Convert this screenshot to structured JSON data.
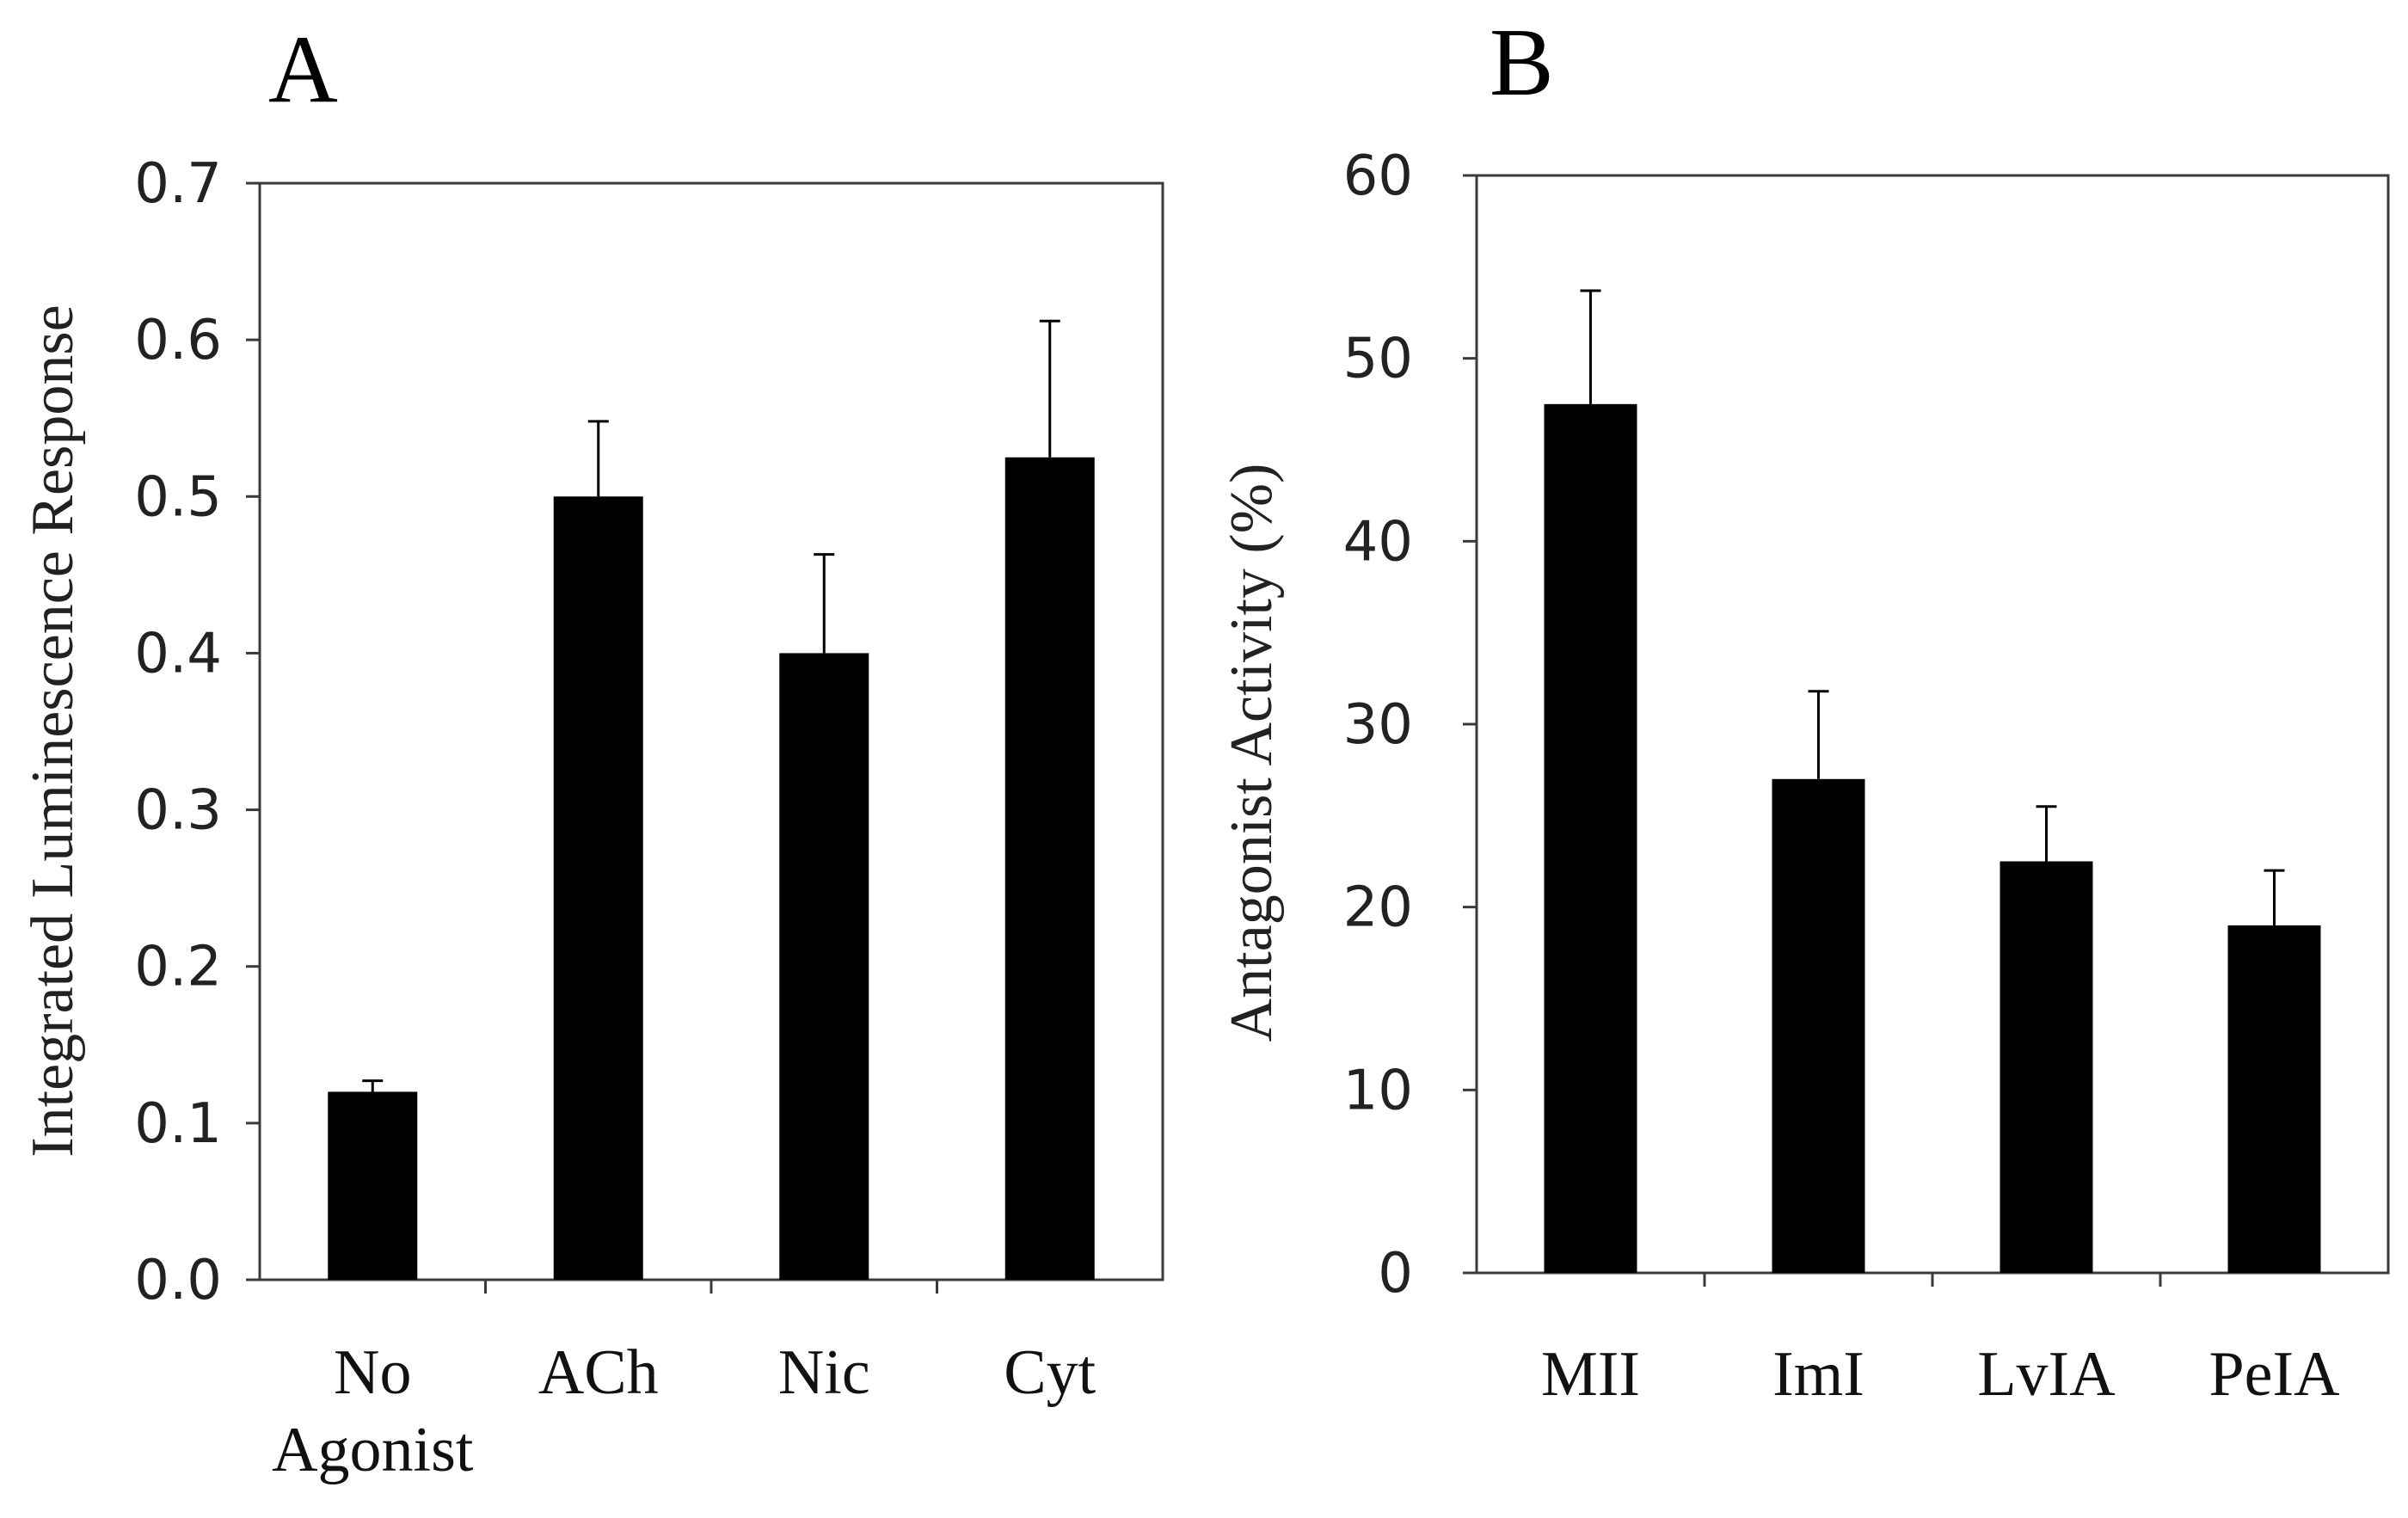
{
  "chart_data": [
    {
      "type": "bar",
      "panel": "A",
      "title": "",
      "xlabel": "",
      "ylabel": "Integrated Luminescence Response",
      "categories": [
        [
          "No",
          "Agonist"
        ],
        [
          "ACh"
        ],
        [
          "Nic"
        ],
        [
          "Cyt"
        ]
      ],
      "values": [
        0.12,
        0.5,
        0.4,
        0.525
      ],
      "errors": [
        0.007,
        0.048,
        0.063,
        0.087
      ],
      "ylim": [
        0,
        0.7
      ],
      "yticks": [
        "0.0",
        "0.1",
        "0.2",
        "0.3",
        "0.4",
        "0.5",
        "0.6",
        "0.7"
      ],
      "grid": false,
      "bar_color": "#000000"
    },
    {
      "type": "bar",
      "panel": "B",
      "title": "",
      "xlabel": "",
      "ylabel": "Antagonist Activity (%)",
      "categories": [
        [
          "MII"
        ],
        [
          "ImI"
        ],
        [
          "LvIA"
        ],
        [
          "PeIA"
        ]
      ],
      "values": [
        47.5,
        27,
        22.5,
        19
      ],
      "errors": [
        6.2,
        4.8,
        3,
        3
      ],
      "ylim": [
        0,
        60
      ],
      "yticks": [
        "0",
        "10",
        "20",
        "30",
        "40",
        "50",
        "60"
      ],
      "grid": false,
      "bar_color": "#000000"
    }
  ]
}
